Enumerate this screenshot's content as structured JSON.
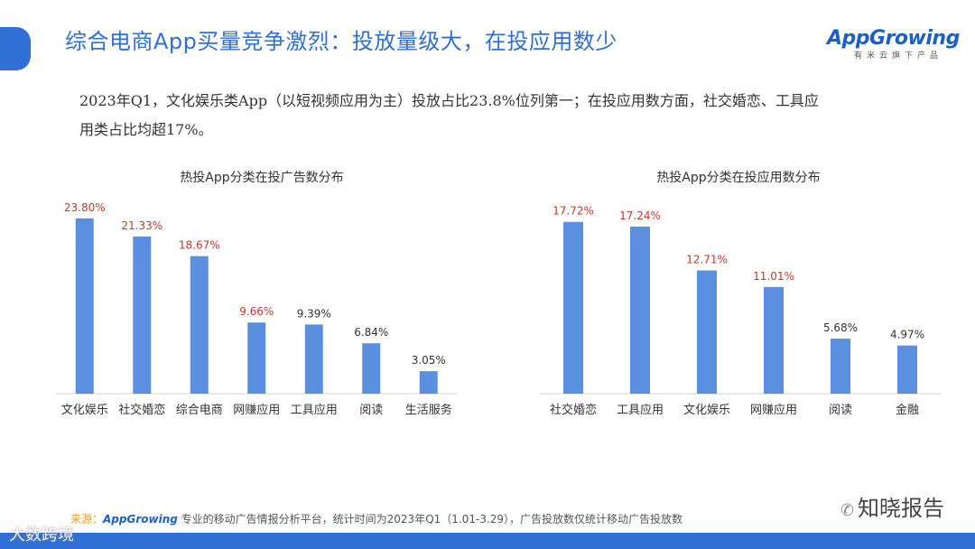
{
  "header": {
    "title": "综合电商App买量竞争激烈：投放量级大，在投应用数少",
    "logo_text": "AppGrowing",
    "logo_subtitle": "有米云旗下产品"
  },
  "summary": "2023年Q1，文化娱乐类App（以短视频应用为主）投放占比23.8%位列第一；在投应用数方面，社交婚恋、工具应用类占比均超17%。",
  "colors": {
    "accent": "#2f6fd6",
    "bar": "#5b8fe0",
    "value_red": "#c0392b",
    "value_dark": "#333333"
  },
  "chart_data": [
    {
      "type": "bar",
      "title": "热投App分类在投广告数分布",
      "categories": [
        "文化娱乐",
        "社交婚恋",
        "综合电商",
        "网赚应用",
        "工具应用",
        "阅读",
        "生活服务"
      ],
      "values": [
        23.8,
        21.33,
        18.67,
        9.66,
        9.39,
        6.84,
        3.05
      ],
      "value_labels": [
        "23.80%",
        "21.33%",
        "18.67%",
        "9.66%",
        "9.39%",
        "6.84%",
        "3.05%"
      ],
      "highlight": [
        true,
        true,
        true,
        true,
        false,
        false,
        false
      ],
      "ylim": [
        0,
        25
      ],
      "grid": false
    },
    {
      "type": "bar",
      "title": "热投App分类在投应用数分布",
      "categories": [
        "社交婚恋",
        "工具应用",
        "文化娱乐",
        "网赚应用",
        "阅读",
        "金融"
      ],
      "values": [
        17.72,
        17.24,
        12.71,
        11.01,
        5.68,
        4.97
      ],
      "value_labels": [
        "17.72%",
        "17.24%",
        "12.71%",
        "11.01%",
        "5.68%",
        "4.97%"
      ],
      "highlight": [
        true,
        true,
        true,
        true,
        false,
        false
      ],
      "ylim": [
        0,
        19
      ],
      "grid": false
    }
  ],
  "footer": {
    "source_label": "来源：",
    "source_brand": "AppGrowing",
    "source_text": "专业的移动广告情报分析平台，统计时间为2023年Q1（1.01-3.29），广告投放数仅统计移动广告投放数"
  },
  "watermarks": {
    "left": "大数跨境",
    "right": "知晓报告"
  }
}
